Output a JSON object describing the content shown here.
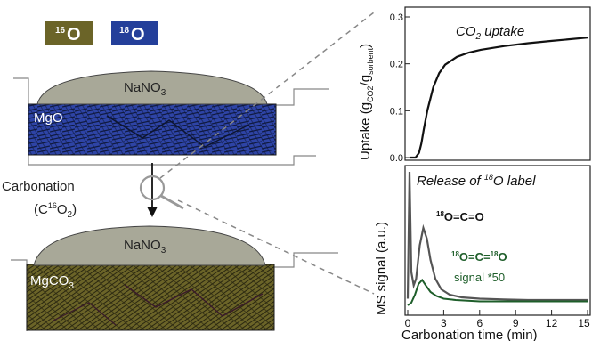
{
  "legend": {
    "o16": {
      "label": "16O",
      "mass": "16",
      "symbol": "O",
      "color": "#6b6428"
    },
    "o18": {
      "label": "18O",
      "mass": "18",
      "symbol": "O",
      "color": "#243f9a"
    }
  },
  "schematic": {
    "top": {
      "salt_prefix": "NaNO",
      "salt_sub": "3",
      "oxide_label": "MgO"
    },
    "process": {
      "label": "Carbonation",
      "gas_prefix": "(C",
      "gas_mass": "16",
      "gas_element": "O",
      "gas_sub": "2",
      "gas_suffix": ")"
    },
    "bottom": {
      "salt_prefix": "NaNO",
      "salt_sub": "3",
      "carbonate_prefix": "MgCO",
      "carbonate_sub": "3"
    },
    "colors": {
      "salt": "#a8a898",
      "mgo": "#2e44a6",
      "mgco3": "#6b6428"
    }
  },
  "chart_data": [
    {
      "type": "line",
      "title": "CO2 uptake",
      "ylabel_prefix": "Uptake (g",
      "ylabel_sub1": "CO2",
      "ylabel_mid": "/g",
      "ylabel_sub2": "sorbent",
      "ylabel_suffix": ")",
      "ylim": [
        0,
        0.3
      ],
      "yticks": [
        "0.0",
        "0.1",
        "0.2",
        "0.3"
      ],
      "series": [
        {
          "x": [
            0,
            0.5,
            0.8,
            1.0,
            1.2,
            1.5,
            2.0,
            2.5,
            3.0,
            4.0,
            5.0,
            6.0,
            8.0,
            10.0,
            12.0,
            15.0
          ],
          "values": [
            0,
            0,
            0.01,
            0.03,
            0.06,
            0.1,
            0.15,
            0.18,
            0.198,
            0.215,
            0.224,
            0.23,
            0.238,
            0.244,
            0.249,
            0.256
          ],
          "color": "#111111"
        }
      ]
    },
    {
      "type": "line",
      "title_prefix": "Release of ",
      "title_mass": "18",
      "title_suffix": "O label",
      "ylabel": "MS signal (a.u.)",
      "xlabel": "Carbonation time (min)",
      "xlim": [
        0,
        15
      ],
      "xticks": [
        "0",
        "3",
        "6",
        "9",
        "12",
        "15"
      ],
      "series": [
        {
          "name": "18O=C=O",
          "color": "#555555",
          "x": [
            0,
            0.15,
            0.3,
            0.5,
            0.7,
            1.0,
            1.3,
            1.6,
            1.9,
            2.3,
            2.8,
            3.5,
            4.5,
            6,
            8,
            10,
            12,
            15
          ],
          "values": [
            0.05,
            1.0,
            0.25,
            0.15,
            0.2,
            0.45,
            0.58,
            0.5,
            0.34,
            0.2,
            0.12,
            0.08,
            0.06,
            0.05,
            0.045,
            0.04,
            0.04,
            0.04
          ]
        },
        {
          "name": "18O=C=18O",
          "annotation": "signal *50",
          "color": "#1e5e2a",
          "x": [
            0,
            0.3,
            0.6,
            0.9,
            1.2,
            1.5,
            1.9,
            2.4,
            3.0,
            4.0,
            5.0,
            6,
            8,
            10,
            12,
            15
          ],
          "values": [
            0.0,
            0.02,
            0.08,
            0.16,
            0.19,
            0.15,
            0.1,
            0.07,
            0.05,
            0.04,
            0.035,
            0.03,
            0.03,
            0.03,
            0.03,
            0.03
          ]
        }
      ]
    }
  ],
  "labels": {
    "ms_line1_mass1": "18",
    "ms_line1_rest": "O=C=O",
    "ms_line2_mass1": "18",
    "ms_line2_mid": "O=C=",
    "ms_line2_mass2": "18",
    "ms_line2_end": "O",
    "ms_line3": "signal *50"
  }
}
